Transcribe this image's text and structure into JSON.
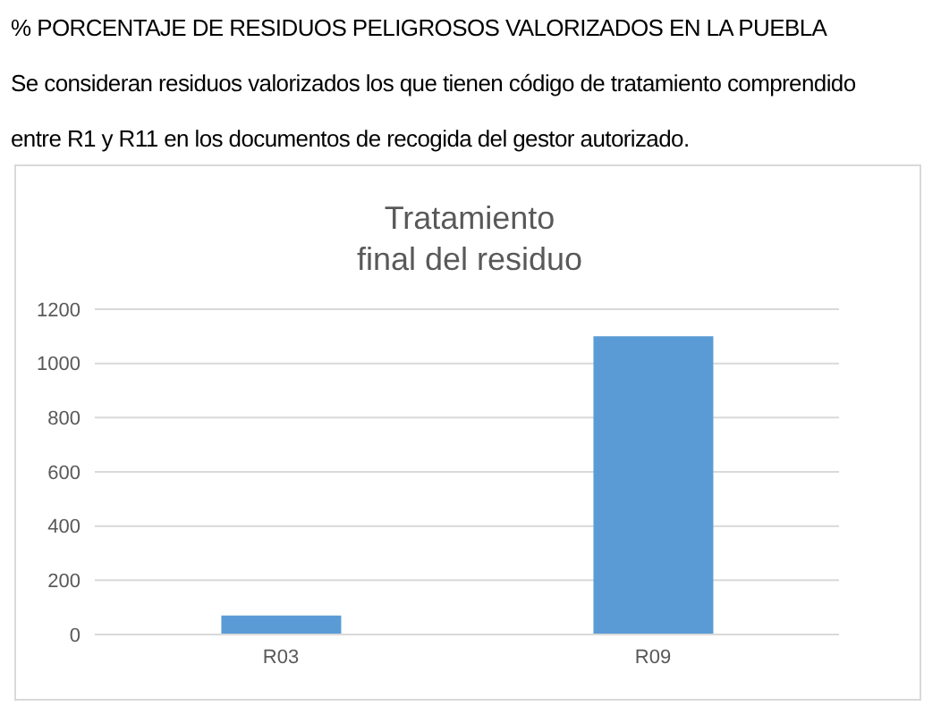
{
  "chart_data": {
    "type": "bar",
    "title": "Tratamiento\nfinal del residuo",
    "annotations": [
      "% PORCENTAJE DE RESIDUOS PELIGROSOS VALORIZADOS EN LA PUEBLA",
      "Se consideran residuos valorizados los que tienen código de tratamiento comprendido",
      "entre R1 y R11 en los documentos de recogida del gestor autorizado."
    ],
    "categories": [
      "R03",
      "R09"
    ],
    "values": [
      70,
      1100
    ],
    "color": "#5b9bd5",
    "ylim": [
      0,
      1200
    ],
    "yticks": [
      0,
      200,
      400,
      600,
      800,
      1000,
      1200
    ],
    "grid": "y"
  }
}
